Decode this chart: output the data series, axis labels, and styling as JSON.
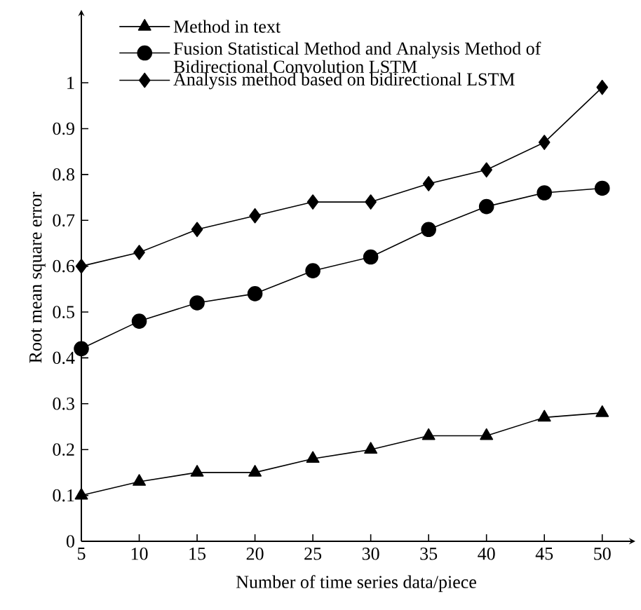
{
  "chart_data": {
    "type": "line",
    "xlabel": "Number of time series data/piece",
    "ylabel": "Root mean square error",
    "x": [
      5,
      10,
      15,
      20,
      25,
      30,
      35,
      40,
      45,
      50
    ],
    "xlim": [
      5,
      52.5
    ],
    "xticks": [
      5,
      10,
      15,
      20,
      25,
      30,
      35,
      40,
      45,
      50
    ],
    "ylim": [
      0,
      1.15
    ],
    "yticks": [
      0,
      0.1,
      0.2,
      0.3,
      0.4,
      0.5,
      0.6,
      0.7,
      0.8,
      0.9,
      1
    ],
    "legend": "top left",
    "line_style": "solid",
    "series": [
      {
        "name": "Method in text",
        "color": "#000000",
        "marker": "triangle",
        "values": [
          0.1,
          0.13,
          0.15,
          0.15,
          0.18,
          0.2,
          0.23,
          0.23,
          0.27,
          0.28
        ]
      },
      {
        "name": "Fusion Statistical Method and Analysis Method of Bidirectional Convolution LSTM",
        "color": "#000000",
        "marker": "circle",
        "values": [
          0.42,
          0.48,
          0.52,
          0.54,
          0.59,
          0.62,
          0.68,
          0.73,
          0.76,
          0.77
        ]
      },
      {
        "name": "Analysis method based on bidirectional LSTM",
        "color": "#000000",
        "marker": "diamond",
        "values": [
          0.6,
          0.63,
          0.68,
          0.71,
          0.74,
          0.74,
          0.78,
          0.81,
          0.87,
          0.99
        ]
      }
    ]
  }
}
